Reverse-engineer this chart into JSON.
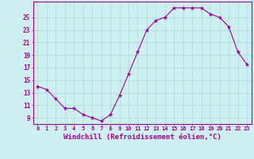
{
  "x": [
    0,
    1,
    2,
    3,
    4,
    5,
    6,
    7,
    8,
    9,
    10,
    11,
    12,
    13,
    14,
    15,
    16,
    17,
    18,
    19,
    20,
    21,
    22,
    23
  ],
  "y": [
    14,
    13.5,
    12,
    10.5,
    10.5,
    9.5,
    9,
    8.5,
    9.5,
    12.5,
    16,
    19.5,
    23,
    24.5,
    25,
    26.5,
    26.5,
    26.5,
    26.5,
    25.5,
    25,
    23.5,
    19.5,
    17.5
  ],
  "line_color": "#990099",
  "marker": "*",
  "marker_size": 3.5,
  "bg_color": "#cff0f0",
  "grid_color": "#aadddd",
  "axis_color": "#990099",
  "tick_color": "#990099",
  "xlabel": "Windchill (Refroidissement éolien,°C)",
  "xlabel_fontsize": 6.5,
  "yticks": [
    9,
    11,
    13,
    15,
    17,
    19,
    21,
    23,
    25
  ],
  "ylim": [
    8.0,
    27.5
  ],
  "xlim": [
    -0.5,
    23.5
  ],
  "tick_fontsize": 5.0
}
